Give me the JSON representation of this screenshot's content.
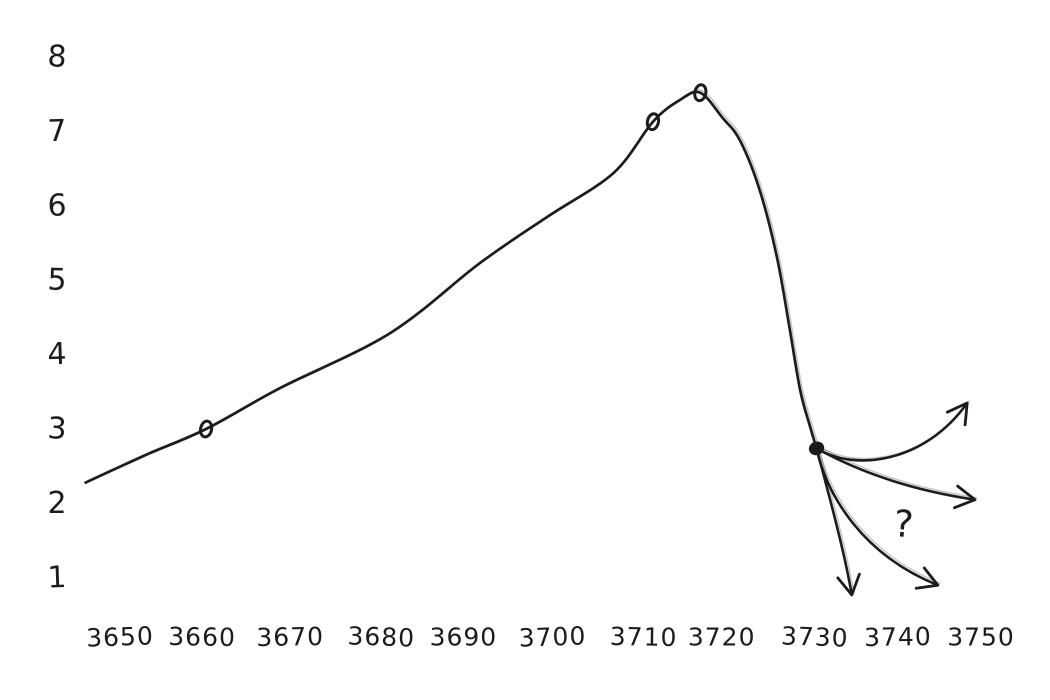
{
  "page": {
    "background_color": "#ffffff",
    "ink_color": "#1c1c1c"
  },
  "chart_data": {
    "type": "line",
    "style": "hand_drawn_sketch",
    "title": "",
    "subtitle": "",
    "xlabel": "",
    "ylabel": "",
    "legend": [],
    "grid": false,
    "axis_lines": false,
    "xlim": [
      3645,
      3753
    ],
    "ylim": [
      0.5,
      8.6
    ],
    "x_ticks": [
      "3650",
      "3660",
      "3670",
      "3680",
      "3690",
      "3700",
      "3710",
      "3720",
      "3730",
      "3740",
      "3750"
    ],
    "y_ticks": [
      "8",
      "7",
      "6",
      "5",
      "4",
      "3",
      "2",
      "1"
    ],
    "series": [
      {
        "name": "observed-trend-curve",
        "points": [
          [
            3646.0,
            2.28
          ],
          [
            3653.0,
            2.65
          ],
          [
            3660.0,
            3.0
          ],
          [
            3668.6,
            3.55
          ],
          [
            3681.4,
            4.29
          ],
          [
            3691.8,
            5.23
          ],
          [
            3699.6,
            5.85
          ],
          [
            3707.3,
            6.44
          ],
          [
            3711.9,
            7.13
          ],
          [
            3715.0,
            7.42
          ],
          [
            3717.4,
            7.52
          ],
          [
            3720.0,
            7.18
          ],
          [
            3722.0,
            6.88
          ],
          [
            3724.3,
            6.21
          ],
          [
            3726.3,
            5.31
          ],
          [
            3727.8,
            4.33
          ],
          [
            3729.0,
            3.52
          ],
          [
            3730.1,
            3.05
          ],
          [
            3730.9,
            2.74
          ]
        ]
      }
    ],
    "marked_points": [
      [
        3660.0,
        3.0
      ],
      [
        3711.9,
        7.13
      ],
      [
        3717.4,
        7.52
      ]
    ],
    "branch_point": [
      3730.9,
      2.74
    ],
    "projection_arrows": [
      {
        "name": "up",
        "c1": [
          3735.4,
          2.42
        ],
        "c2": [
          3743.5,
          2.55
        ],
        "to": [
          3748.4,
          3.35
        ]
      },
      {
        "name": "right",
        "c1": [
          3737.1,
          2.34
        ],
        "c2": [
          3743.5,
          2.15
        ],
        "to": [
          3749.3,
          2.05
        ]
      },
      {
        "name": "down-right",
        "c1": [
          3732.1,
          2.11
        ],
        "c2": [
          3736.2,
          1.31
        ],
        "to": [
          3745.0,
          0.9
        ]
      },
      {
        "name": "down",
        "c1": [
          3732.5,
          2.05
        ],
        "c2": [
          3734.2,
          1.31
        ],
        "to": [
          3735.0,
          0.77
        ]
      }
    ],
    "annotation": {
      "text": "?",
      "x": 3741,
      "y": 1.72
    }
  }
}
